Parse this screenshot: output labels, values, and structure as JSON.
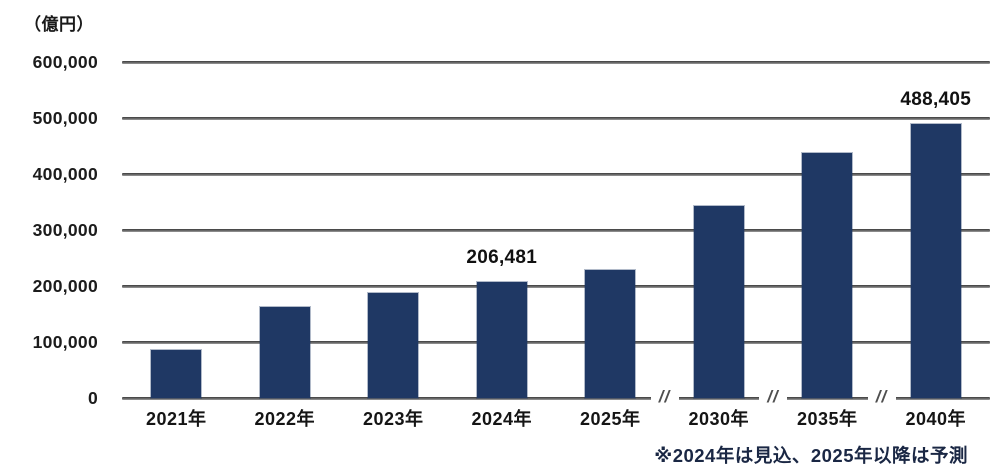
{
  "chart_data": {
    "type": "bar",
    "unit_label": "（億円）",
    "categories": [
      "2021年",
      "2022年",
      "2023年",
      "2024年",
      "2025年",
      "2030年",
      "2035年",
      "2040年"
    ],
    "values": [
      86000,
      163000,
      188000,
      206481,
      229000,
      342000,
      438000,
      488405
    ],
    "data_labels": [
      null,
      null,
      null,
      "206,481",
      null,
      null,
      null,
      "488,405"
    ],
    "ylim": [
      0,
      600000
    ],
    "ytick_step": 100000,
    "ytick_labels": [
      "0",
      "100,000",
      "200,000",
      "300,000",
      "400,000",
      "500,000",
      "600,000"
    ],
    "grid": true,
    "legend": false,
    "axis_breaks_after_index": [
      4,
      5,
      6
    ],
    "break_glyph": "//",
    "footnote": "※2024年は見込、2025年以降は予測",
    "colors": {
      "bar": "#1f3864",
      "gridline": "#6b6b6b",
      "text": "#1a1a1a",
      "footnote": "#1a2744"
    }
  }
}
